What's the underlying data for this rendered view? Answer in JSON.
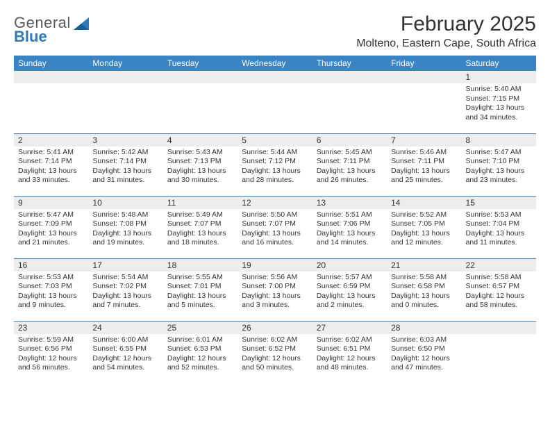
{
  "logo": {
    "line1": "General",
    "line2": "Blue"
  },
  "header": {
    "month_title": "February 2025",
    "location": "Molteno, Eastern Cape, South Africa"
  },
  "day_names": [
    "Sunday",
    "Monday",
    "Tuesday",
    "Wednesday",
    "Thursday",
    "Friday",
    "Saturday"
  ],
  "colors": {
    "header_bg": "#3a83c4",
    "header_fg": "#ffffff",
    "daynum_bg": "#ededed",
    "cell_border": "#5a7a99",
    "logo_gray": "#555b61",
    "logo_blue": "#2f7ab8"
  },
  "weeks": [
    [
      {
        "n": "",
        "sr": "",
        "ss": "",
        "dl": ""
      },
      {
        "n": "",
        "sr": "",
        "ss": "",
        "dl": ""
      },
      {
        "n": "",
        "sr": "",
        "ss": "",
        "dl": ""
      },
      {
        "n": "",
        "sr": "",
        "ss": "",
        "dl": ""
      },
      {
        "n": "",
        "sr": "",
        "ss": "",
        "dl": ""
      },
      {
        "n": "",
        "sr": "",
        "ss": "",
        "dl": ""
      },
      {
        "n": "1",
        "sr": "Sunrise: 5:40 AM",
        "ss": "Sunset: 7:15 PM",
        "dl": "Daylight: 13 hours and 34 minutes."
      }
    ],
    [
      {
        "n": "2",
        "sr": "Sunrise: 5:41 AM",
        "ss": "Sunset: 7:14 PM",
        "dl": "Daylight: 13 hours and 33 minutes."
      },
      {
        "n": "3",
        "sr": "Sunrise: 5:42 AM",
        "ss": "Sunset: 7:14 PM",
        "dl": "Daylight: 13 hours and 31 minutes."
      },
      {
        "n": "4",
        "sr": "Sunrise: 5:43 AM",
        "ss": "Sunset: 7:13 PM",
        "dl": "Daylight: 13 hours and 30 minutes."
      },
      {
        "n": "5",
        "sr": "Sunrise: 5:44 AM",
        "ss": "Sunset: 7:12 PM",
        "dl": "Daylight: 13 hours and 28 minutes."
      },
      {
        "n": "6",
        "sr": "Sunrise: 5:45 AM",
        "ss": "Sunset: 7:11 PM",
        "dl": "Daylight: 13 hours and 26 minutes."
      },
      {
        "n": "7",
        "sr": "Sunrise: 5:46 AM",
        "ss": "Sunset: 7:11 PM",
        "dl": "Daylight: 13 hours and 25 minutes."
      },
      {
        "n": "8",
        "sr": "Sunrise: 5:47 AM",
        "ss": "Sunset: 7:10 PM",
        "dl": "Daylight: 13 hours and 23 minutes."
      }
    ],
    [
      {
        "n": "9",
        "sr": "Sunrise: 5:47 AM",
        "ss": "Sunset: 7:09 PM",
        "dl": "Daylight: 13 hours and 21 minutes."
      },
      {
        "n": "10",
        "sr": "Sunrise: 5:48 AM",
        "ss": "Sunset: 7:08 PM",
        "dl": "Daylight: 13 hours and 19 minutes."
      },
      {
        "n": "11",
        "sr": "Sunrise: 5:49 AM",
        "ss": "Sunset: 7:07 PM",
        "dl": "Daylight: 13 hours and 18 minutes."
      },
      {
        "n": "12",
        "sr": "Sunrise: 5:50 AM",
        "ss": "Sunset: 7:07 PM",
        "dl": "Daylight: 13 hours and 16 minutes."
      },
      {
        "n": "13",
        "sr": "Sunrise: 5:51 AM",
        "ss": "Sunset: 7:06 PM",
        "dl": "Daylight: 13 hours and 14 minutes."
      },
      {
        "n": "14",
        "sr": "Sunrise: 5:52 AM",
        "ss": "Sunset: 7:05 PM",
        "dl": "Daylight: 13 hours and 12 minutes."
      },
      {
        "n": "15",
        "sr": "Sunrise: 5:53 AM",
        "ss": "Sunset: 7:04 PM",
        "dl": "Daylight: 13 hours and 11 minutes."
      }
    ],
    [
      {
        "n": "16",
        "sr": "Sunrise: 5:53 AM",
        "ss": "Sunset: 7:03 PM",
        "dl": "Daylight: 13 hours and 9 minutes."
      },
      {
        "n": "17",
        "sr": "Sunrise: 5:54 AM",
        "ss": "Sunset: 7:02 PM",
        "dl": "Daylight: 13 hours and 7 minutes."
      },
      {
        "n": "18",
        "sr": "Sunrise: 5:55 AM",
        "ss": "Sunset: 7:01 PM",
        "dl": "Daylight: 13 hours and 5 minutes."
      },
      {
        "n": "19",
        "sr": "Sunrise: 5:56 AM",
        "ss": "Sunset: 7:00 PM",
        "dl": "Daylight: 13 hours and 3 minutes."
      },
      {
        "n": "20",
        "sr": "Sunrise: 5:57 AM",
        "ss": "Sunset: 6:59 PM",
        "dl": "Daylight: 13 hours and 2 minutes."
      },
      {
        "n": "21",
        "sr": "Sunrise: 5:58 AM",
        "ss": "Sunset: 6:58 PM",
        "dl": "Daylight: 13 hours and 0 minutes."
      },
      {
        "n": "22",
        "sr": "Sunrise: 5:58 AM",
        "ss": "Sunset: 6:57 PM",
        "dl": "Daylight: 12 hours and 58 minutes."
      }
    ],
    [
      {
        "n": "23",
        "sr": "Sunrise: 5:59 AM",
        "ss": "Sunset: 6:56 PM",
        "dl": "Daylight: 12 hours and 56 minutes."
      },
      {
        "n": "24",
        "sr": "Sunrise: 6:00 AM",
        "ss": "Sunset: 6:55 PM",
        "dl": "Daylight: 12 hours and 54 minutes."
      },
      {
        "n": "25",
        "sr": "Sunrise: 6:01 AM",
        "ss": "Sunset: 6:53 PM",
        "dl": "Daylight: 12 hours and 52 minutes."
      },
      {
        "n": "26",
        "sr": "Sunrise: 6:02 AM",
        "ss": "Sunset: 6:52 PM",
        "dl": "Daylight: 12 hours and 50 minutes."
      },
      {
        "n": "27",
        "sr": "Sunrise: 6:02 AM",
        "ss": "Sunset: 6:51 PM",
        "dl": "Daylight: 12 hours and 48 minutes."
      },
      {
        "n": "28",
        "sr": "Sunrise: 6:03 AM",
        "ss": "Sunset: 6:50 PM",
        "dl": "Daylight: 12 hours and 47 minutes."
      },
      {
        "n": "",
        "sr": "",
        "ss": "",
        "dl": ""
      }
    ]
  ]
}
